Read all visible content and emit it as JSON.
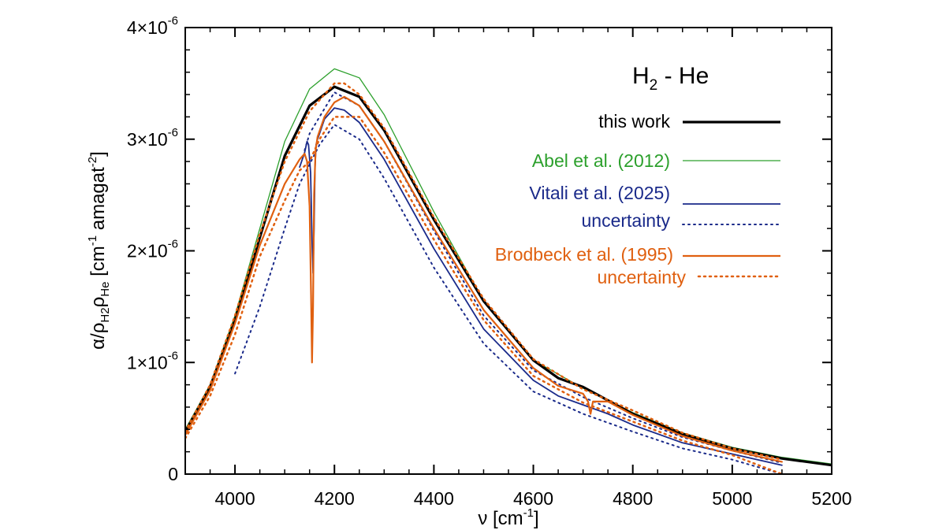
{
  "chart_data": {
    "type": "line",
    "title": {
      "main": "H",
      "sub": "2",
      "rest": " - He"
    },
    "xlabel": {
      "main": "ν [cm",
      "sup": "-1",
      "tail": "]"
    },
    "ylabel": {
      "a": "α/ρ",
      "b": "H2",
      "c": "ρ",
      "d": "He",
      "e": " [cm",
      "f": "-1",
      "g": " amagat",
      "h": "-2",
      "i": "]"
    },
    "xlim": [
      3900,
      5200
    ],
    "ylim": [
      0,
      4e-06
    ],
    "x_ticks": [
      {
        "value": 4000,
        "label": "4000"
      },
      {
        "value": 4200,
        "label": "4200"
      },
      {
        "value": 4400,
        "label": "4400"
      },
      {
        "value": 4600,
        "label": "4600"
      },
      {
        "value": 4800,
        "label": "4800"
      },
      {
        "value": 5000,
        "label": "5000"
      },
      {
        "value": 5200,
        "label": "5200"
      }
    ],
    "y_ticks": [
      {
        "value": 0,
        "mant": "0",
        "exp": ""
      },
      {
        "value": 1e-06,
        "mant": "1×10",
        "exp": "-6"
      },
      {
        "value": 2e-06,
        "mant": "2×10",
        "exp": "-6"
      },
      {
        "value": 3e-06,
        "mant": "3×10",
        "exp": "-6"
      },
      {
        "value": 4e-06,
        "mant": "4×10",
        "exp": "-6"
      }
    ],
    "series": [
      {
        "name": "Abel et al. (2012)",
        "color": "#2ca02c",
        "style": "solid",
        "width": 1.3,
        "x": [
          3900,
          3950,
          4000,
          4050,
          4100,
          4150,
          4200,
          4250,
          4300,
          4400,
          4500,
          4600,
          4700,
          4750,
          4800,
          4900,
          5000,
          5100,
          5200
        ],
        "y": [
          4e-07,
          8e-07,
          1.42e-06,
          2.2e-06,
          2.98e-06,
          3.45e-06,
          3.63e-06,
          3.55e-06,
          3.22e-06,
          2.35e-06,
          1.55e-06,
          1.02e-06,
          7.7e-07,
          6.6e-07,
          5.5e-07,
          3.7e-07,
          2.4e-07,
          1.5e-07,
          9e-08
        ]
      },
      {
        "name": "this work",
        "color": "#000000",
        "style": "solid",
        "width": 3.2,
        "x": [
          3900,
          3950,
          4000,
          4050,
          4100,
          4150,
          4200,
          4250,
          4300,
          4400,
          4500,
          4600,
          4650,
          4700,
          4750,
          4800,
          4900,
          5000,
          5100,
          5200
        ],
        "y": [
          3.8e-07,
          7.8e-07,
          1.38e-06,
          2.12e-06,
          2.85e-06,
          3.3e-06,
          3.47e-06,
          3.38e-06,
          3.08e-06,
          2.28e-06,
          1.55e-06,
          1.02e-06,
          8.6e-07,
          7.8e-07,
          6.6e-07,
          5.4e-07,
          3.6e-07,
          2.3e-07,
          1.4e-07,
          8e-08
        ]
      },
      {
        "name": "Vitali et al. (2025)",
        "color": "#1a2a8a",
        "style": "solid",
        "width": 1.8,
        "x": [
          4130,
          4140,
          4145,
          4148,
          4152,
          4155,
          4157,
          4159,
          4161,
          4163,
          4166,
          4170,
          4180,
          4200,
          4220,
          4250,
          4300,
          4400,
          4500,
          4600,
          4650,
          4700,
          4750,
          4800,
          4900,
          5000,
          5050,
          5100
        ],
        "y": [
          2.75e-06,
          2.88e-06,
          2.98e-06,
          2.95e-06,
          2.7e-06,
          2.1e-06,
          1.8e-06,
          2.2e-06,
          2.75e-06,
          2.95e-06,
          3e-06,
          3.05e-06,
          3.18e-06,
          3.28e-06,
          3.26e-06,
          3.15e-06,
          2.82e-06,
          2.02e-06,
          1.3e-06,
          8.4e-07,
          7e-07,
          6.2e-07,
          5.4e-07,
          4.4e-07,
          2.8e-07,
          1.8e-07,
          1.3e-07,
          8e-08
        ]
      },
      {
        "name": "Vitali et al. (2025) upper",
        "color": "#1a2a8a",
        "style": "dotted",
        "width": 2,
        "x": [
          4140,
          4150,
          4170,
          4200,
          4250,
          4300,
          4400,
          4500,
          4600,
          4700,
          4800,
          4900,
          5000,
          5100
        ],
        "y": [
          2.9e-06,
          3.05e-06,
          3.2e-06,
          3.42e-06,
          3.3e-06,
          2.98e-06,
          2.18e-06,
          1.42e-06,
          9.3e-07,
          6.9e-07,
          5e-07,
          3.3e-07,
          2.1e-07,
          1e-07
        ]
      },
      {
        "name": "Vitali et al. (2025) lower",
        "color": "#1a2a8a",
        "style": "dotted",
        "width": 2,
        "x": [
          4000,
          4050,
          4100,
          4130,
          4170,
          4200,
          4250,
          4300,
          4400,
          4500,
          4600,
          4700,
          4800,
          4900,
          5000,
          5100
        ],
        "y": [
          9e-07,
          1.5e-06,
          2.2e-06,
          2.6e-06,
          2.95e-06,
          3.13e-06,
          3e-06,
          2.65e-06,
          1.85e-06,
          1.17e-06,
          7.4e-07,
          5.4e-07,
          3.8e-07,
          2.3e-07,
          1.3e-07,
          0
        ]
      },
      {
        "name": "Brodbeck et al. (1995)",
        "color": "#e06010",
        "style": "solid",
        "width": 2.2,
        "x": [
          3900,
          3950,
          4000,
          4050,
          4100,
          4130,
          4140,
          4145,
          4150,
          4153,
          4155,
          4157,
          4159,
          4162,
          4166,
          4180,
          4200,
          4220,
          4250,
          4300,
          4400,
          4500,
          4600,
          4650,
          4700,
          4710,
          4715,
          4720,
          4750,
          4800,
          4900,
          5000,
          5050,
          5100
        ],
        "y": [
          3.5e-07,
          7.5e-07,
          1.35e-06,
          2.05e-06,
          2.6e-06,
          2.82e-06,
          2.87e-06,
          2.8e-06,
          2.4e-06,
          1.6e-06,
          1e-06,
          1.5e-06,
          2.5e-06,
          2.9e-06,
          3.02e-06,
          3.2e-06,
          3.33e-06,
          3.38e-06,
          3.3e-06,
          2.98e-06,
          2.2e-06,
          1.47e-06,
          9.5e-07,
          7.9e-07,
          7.2e-07,
          6.5e-07,
          5.4e-07,
          6.5e-07,
          6.5e-07,
          5.3e-07,
          3.4e-07,
          2.1e-07,
          1.6e-07,
          1.1e-07
        ]
      },
      {
        "name": "Brodbeck et al. (1995) upper",
        "color": "#e06010",
        "style": "dotted",
        "width": 2.5,
        "x": [
          3900,
          3950,
          4000,
          4050,
          4100,
          4150,
          4200,
          4220,
          4250,
          4300,
          4400,
          4500,
          4600,
          4700,
          4800,
          4900,
          5000,
          5100
        ],
        "y": [
          3.8e-07,
          8e-07,
          1.42e-06,
          2.15e-06,
          2.8e-06,
          3.25e-06,
          3.5e-06,
          3.5e-06,
          3.4e-06,
          3.1e-06,
          2.3e-06,
          1.57e-06,
          1.03e-06,
          7.6e-07,
          5.7e-07,
          3.7e-07,
          2.3e-07,
          1.3e-07
        ]
      },
      {
        "name": "Brodbeck et al. (1995) lower",
        "color": "#e06010",
        "style": "dotted",
        "width": 2.5,
        "x": [
          3900,
          3950,
          4000,
          4050,
          4100,
          4130,
          4150,
          4170,
          4200,
          4250,
          4300,
          4400,
          4500,
          4600,
          4700,
          4800,
          4900,
          5000,
          5100
        ],
        "y": [
          3.2e-07,
          7e-07,
          1.25e-06,
          1.95e-06,
          2.45e-06,
          2.72e-06,
          2.8e-06,
          3e-06,
          3.2e-06,
          3.2e-06,
          2.88e-06,
          2.1e-06,
          1.38e-06,
          8.8e-07,
          6.4e-07,
          4.7e-07,
          3e-07,
          1.7e-07,
          0
        ]
      }
    ],
    "legend": [
      {
        "label": "this work",
        "color": "#000000",
        "style": "solid",
        "width": 3.2
      },
      {
        "label": "Abel et al. (2012)",
        "color": "#2ca02c",
        "style": "solid",
        "width": 1.3
      },
      {
        "label": "Vitali et al. (2025)",
        "color": "#1a2a8a",
        "style": "solid",
        "width": 1.8
      },
      {
        "label": "uncertainty",
        "color": "#1a2a8a",
        "style": "dotted",
        "width": 2
      },
      {
        "label": "Brodbeck et al. (1995)",
        "color": "#e06010",
        "style": "solid",
        "width": 2.2
      },
      {
        "label": "uncertainty",
        "color": "#e06010",
        "style": "dotted",
        "width": 2.5
      }
    ]
  }
}
